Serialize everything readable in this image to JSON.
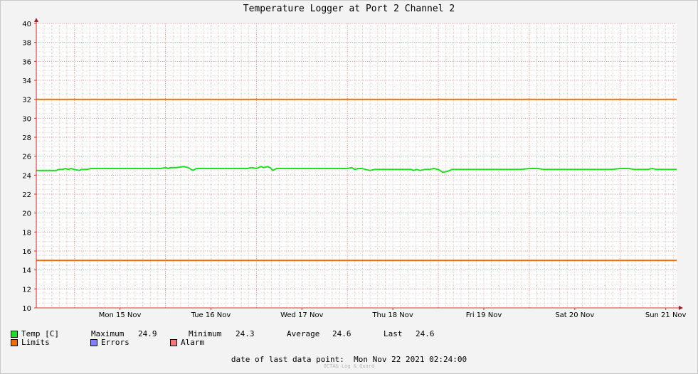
{
  "title": "Temperature Logger at Port 2 Channel 2",
  "legend": {
    "temp_label": "Temp [C]",
    "limits_label": "Limits",
    "errors_label": "Errors",
    "alarm_label": "Alarm",
    "colors": {
      "temp": "#1ee01e",
      "limits": "#e8700a",
      "errors": "#7f7fff",
      "alarm": "#f07878"
    }
  },
  "stats": {
    "maximum_label": "Maximum",
    "maximum_value": "24.9",
    "minimum_label": "Minimum",
    "minimum_value": "24.3",
    "average_label": "Average",
    "average_value": "24.6",
    "last_label": "Last",
    "last_value": "24.6"
  },
  "footer": {
    "label": "date of last data point:",
    "value": "Mon Nov 22 2021 02:24:00",
    "credit": "OCTA& Log & Guard"
  },
  "chart_data": {
    "type": "line",
    "title": "Temperature Logger at Port 2 Channel 2",
    "xlabel": "",
    "ylabel": "",
    "x_range_days": [
      14.58,
      21.62
    ],
    "xticks": [
      {
        "day": 15,
        "label": "Mon 15 Nov"
      },
      {
        "day": 16,
        "label": "Tue 16 Nov"
      },
      {
        "day": 17,
        "label": "Wed 17 Nov"
      },
      {
        "day": 18,
        "label": "Thu 18 Nov"
      },
      {
        "day": 19,
        "label": "Fri 19 Nov"
      },
      {
        "day": 20,
        "label": "Sat 20 Nov"
      },
      {
        "day": 21,
        "label": "Sun 21 Nov"
      }
    ],
    "ylim": [
      10,
      40
    ],
    "yticks": [
      10,
      12,
      14,
      16,
      18,
      20,
      22,
      24,
      26,
      28,
      30,
      32,
      34,
      36,
      38,
      40
    ],
    "grid": true,
    "series": [
      {
        "name": "Temp [C]",
        "color": "#1ee01e",
        "points": [
          [
            14.58,
            24.5
          ],
          [
            14.8,
            24.5
          ],
          [
            14.83,
            24.6
          ],
          [
            14.87,
            24.6
          ],
          [
            14.9,
            24.7
          ],
          [
            14.93,
            24.6
          ],
          [
            14.96,
            24.7
          ],
          [
            15.0,
            24.6
          ],
          [
            15.05,
            24.5
          ],
          [
            15.08,
            24.6
          ],
          [
            15.14,
            24.6
          ],
          [
            15.18,
            24.7
          ],
          [
            15.4,
            24.7
          ],
          [
            15.7,
            24.7
          ],
          [
            15.9,
            24.7
          ],
          [
            15.95,
            24.7
          ],
          [
            16.0,
            24.8
          ],
          [
            16.03,
            24.7
          ],
          [
            16.06,
            24.8
          ],
          [
            16.12,
            24.8
          ],
          [
            16.2,
            24.9
          ],
          [
            16.25,
            24.8
          ],
          [
            16.3,
            24.5
          ],
          [
            16.34,
            24.7
          ],
          [
            16.5,
            24.7
          ],
          [
            16.8,
            24.7
          ],
          [
            16.9,
            24.7
          ],
          [
            16.95,
            24.8
          ],
          [
            17.0,
            24.7
          ],
          [
            17.05,
            24.9
          ],
          [
            17.08,
            24.8
          ],
          [
            17.12,
            24.9
          ],
          [
            17.15,
            24.8
          ],
          [
            17.18,
            24.5
          ],
          [
            17.22,
            24.7
          ],
          [
            17.5,
            24.7
          ],
          [
            17.8,
            24.7
          ],
          [
            17.95,
            24.7
          ],
          [
            18.0,
            24.7
          ],
          [
            18.05,
            24.8
          ],
          [
            18.08,
            24.6
          ],
          [
            18.12,
            24.7
          ],
          [
            18.16,
            24.7
          ],
          [
            18.2,
            24.6
          ],
          [
            18.25,
            24.5
          ],
          [
            18.3,
            24.6
          ],
          [
            18.5,
            24.6
          ],
          [
            18.7,
            24.6
          ],
          [
            18.73,
            24.5
          ],
          [
            18.76,
            24.6
          ],
          [
            18.8,
            24.5
          ],
          [
            18.85,
            24.6
          ],
          [
            18.9,
            24.6
          ],
          [
            18.95,
            24.7
          ],
          [
            19.0,
            24.6
          ],
          [
            19.05,
            24.3
          ],
          [
            19.1,
            24.4
          ],
          [
            19.15,
            24.6
          ],
          [
            19.3,
            24.6
          ],
          [
            19.6,
            24.6
          ],
          [
            19.9,
            24.6
          ],
          [
            20.0,
            24.7
          ],
          [
            20.1,
            24.7
          ],
          [
            20.15,
            24.6
          ],
          [
            20.4,
            24.6
          ],
          [
            20.7,
            24.6
          ],
          [
            20.9,
            24.6
          ],
          [
            21.0,
            24.7
          ],
          [
            21.1,
            24.7
          ],
          [
            21.15,
            24.6
          ],
          [
            21.3,
            24.6
          ],
          [
            21.35,
            24.7
          ],
          [
            21.4,
            24.6
          ],
          [
            21.62,
            24.6
          ]
        ]
      },
      {
        "name": "Limits",
        "color": "#e8700a",
        "points": [
          [
            14.58,
            32
          ],
          [
            21.62,
            32
          ]
        ]
      },
      {
        "name": "Limits",
        "color": "#e8700a",
        "points": [
          [
            14.58,
            15
          ],
          [
            21.62,
            15
          ]
        ]
      }
    ]
  }
}
